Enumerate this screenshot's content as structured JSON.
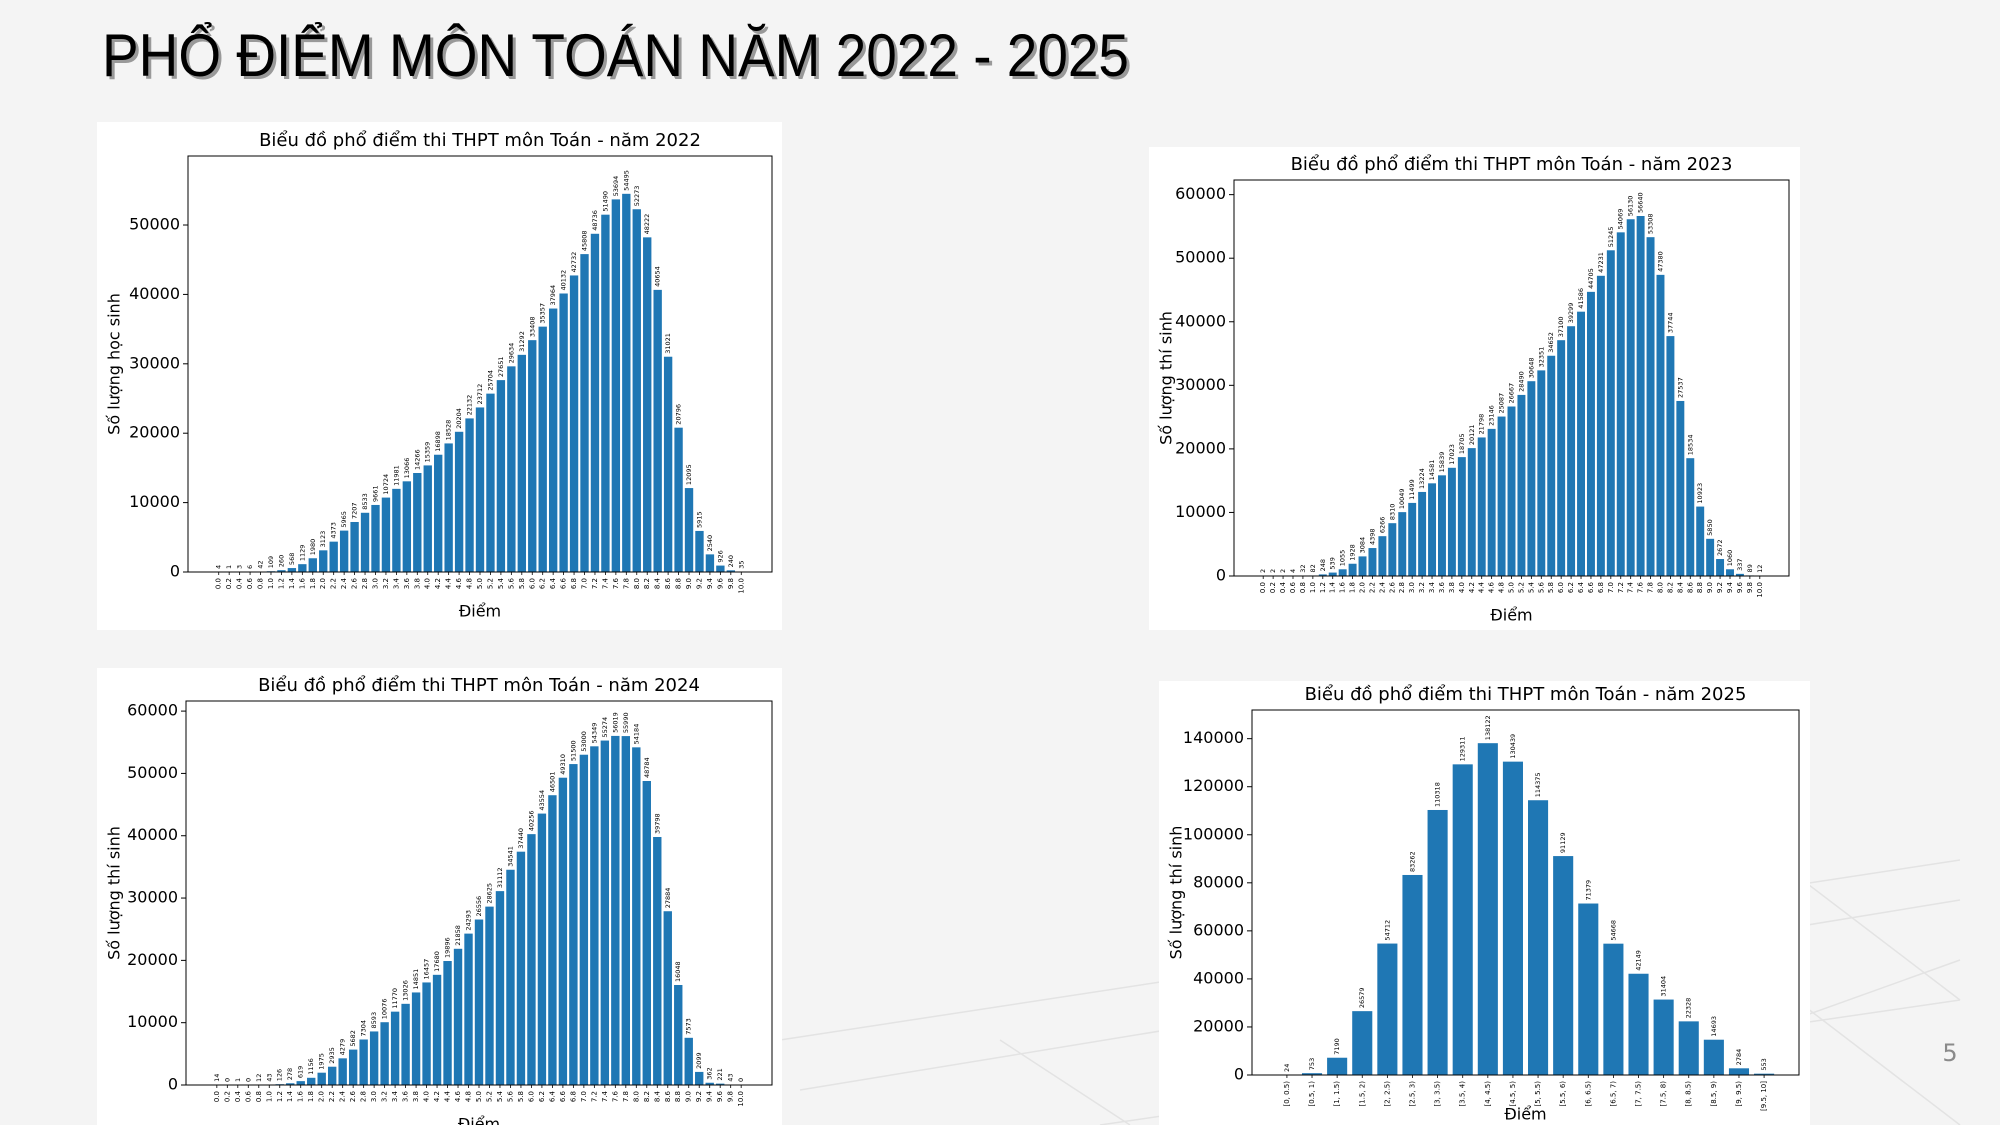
{
  "title": "PHỔ ĐIỂM MÔN TOÁN NĂM 2022 - 2025",
  "page_number": 5,
  "chart_data": [
    {
      "type": "bar",
      "title": "Biểu đồ phổ điểm thi THPT môn Toán - năm 2022",
      "xlabel": "Điểm",
      "ylabel": "Số lượng học sinh",
      "color": "#1f77b4",
      "categories": [
        "0.0",
        "0.2",
        "0.4",
        "0.6",
        "0.8",
        "1.0",
        "1.2",
        "1.4",
        "1.6",
        "1.8",
        "2.0",
        "2.2",
        "2.4",
        "2.6",
        "2.8",
        "3.0",
        "3.2",
        "3.4",
        "3.6",
        "3.8",
        "4.0",
        "4.2",
        "4.4",
        "4.6",
        "4.8",
        "5.0",
        "5.2",
        "5.4",
        "5.6",
        "5.8",
        "6.0",
        "6.2",
        "6.4",
        "6.6",
        "6.8",
        "7.0",
        "7.2",
        "7.4",
        "7.6",
        "7.8",
        "8.0",
        "8.2",
        "8.4",
        "8.6",
        "8.8",
        "9.0",
        "9.2",
        "9.4",
        "9.6",
        "9.8",
        "10.0"
      ],
      "values": [
        4,
        1,
        3,
        6,
        42,
        109,
        260,
        568,
        1129,
        1980,
        3123,
        4373,
        5965,
        7207,
        8533,
        9661,
        10724,
        11981,
        13066,
        14266,
        15359,
        16898,
        18528,
        20204,
        22132,
        23712,
        25704,
        27651,
        29634,
        31292,
        33408,
        35357,
        37964,
        40132,
        42732,
        45808,
        48736,
        51490,
        53694,
        54495,
        52273,
        48222,
        40654,
        31021,
        20796,
        12095,
        5915,
        2540,
        926,
        240,
        35
      ],
      "ylim": [
        0,
        59945
      ],
      "yticks": [
        0,
        10000,
        20000,
        30000,
        40000,
        50000
      ]
    },
    {
      "type": "bar",
      "title": "Biểu đồ phổ điểm thi THPT môn Toán - năm 2023",
      "xlabel": "Điểm",
      "ylabel": "Số lượng thí sinh",
      "color": "#1f77b4",
      "categories": [
        "0.0",
        "0.2",
        "0.4",
        "0.6",
        "0.8",
        "1.0",
        "1.2",
        "1.4",
        "1.6",
        "1.8",
        "2.0",
        "2.2",
        "2.4",
        "2.6",
        "2.8",
        "3.0",
        "3.2",
        "3.4",
        "3.6",
        "3.8",
        "4.0",
        "4.2",
        "4.4",
        "4.6",
        "4.8",
        "5.0",
        "5.2",
        "5.4",
        "5.6",
        "5.8",
        "6.0",
        "6.2",
        "6.4",
        "6.6",
        "6.8",
        "7.0",
        "7.2",
        "7.4",
        "7.6",
        "7.8",
        "8.0",
        "8.2",
        "8.4",
        "8.6",
        "8.8",
        "9.0",
        "9.2",
        "9.4",
        "9.6",
        "9.8",
        "10.0"
      ],
      "values": [
        2,
        2,
        2,
        4,
        32,
        82,
        248,
        539,
        1055,
        1928,
        3084,
        4398,
        6266,
        8310,
        10049,
        11499,
        13224,
        14581,
        15839,
        17023,
        18705,
        20121,
        21798,
        23146,
        25087,
        26667,
        28490,
        30648,
        32351,
        34652,
        37100,
        39299,
        41586,
        44705,
        47231,
        51245,
        54069,
        56130,
        56640,
        53308,
        47380,
        37744,
        27537,
        18534,
        10923,
        5850,
        2672,
        1060,
        337,
        89,
        12
      ],
      "ylim": [
        0,
        62304
      ],
      "yticks": [
        0,
        10000,
        20000,
        30000,
        40000,
        50000,
        60000
      ]
    },
    {
      "type": "bar",
      "title": "Biểu đồ phổ điểm thi THPT môn Toán - năm 2024",
      "xlabel": "Điểm",
      "ylabel": "Số lượng thí sinh",
      "color": "#1f77b4",
      "categories": [
        "0.0",
        "0.2",
        "0.4",
        "0.6",
        "0.8",
        "1.0",
        "1.2",
        "1.4",
        "1.6",
        "1.8",
        "2.0",
        "2.2",
        "2.4",
        "2.6",
        "2.8",
        "3.0",
        "3.2",
        "3.4",
        "3.6",
        "3.8",
        "4.0",
        "4.2",
        "4.4",
        "4.6",
        "4.8",
        "5.0",
        "5.2",
        "5.4",
        "5.6",
        "5.8",
        "6.0",
        "6.2",
        "6.4",
        "6.6",
        "6.8",
        "7.0",
        "7.2",
        "7.4",
        "7.6",
        "7.8",
        "8.0",
        "8.2",
        "8.4",
        "8.6",
        "8.8",
        "9.0",
        "9.2",
        "9.4",
        "9.6",
        "9.8",
        "10.0"
      ],
      "values": [
        14,
        0,
        1,
        0,
        12,
        43,
        126,
        278,
        619,
        1156,
        1975,
        2935,
        4279,
        5682,
        7304,
        8593,
        10076,
        11770,
        13026,
        14851,
        16457,
        17680,
        19896,
        21858,
        24293,
        26556,
        28625,
        31112,
        34541,
        37440,
        40256,
        43554,
        46501,
        49310,
        51500,
        53000,
        54349,
        55274,
        56019,
        55990,
        54184,
        48784,
        39798,
        27884,
        16048,
        7573,
        2099,
        362,
        221,
        43,
        0
      ],
      "ylim": [
        0,
        61621
      ],
      "yticks": [
        0,
        10000,
        20000,
        30000,
        40000,
        50000,
        60000
      ]
    },
    {
      "type": "bar",
      "title": "Biểu đồ phổ điểm thi THPT môn Toán - năm 2025",
      "xlabel": "Điểm",
      "ylabel": "Số lượng thí sinh",
      "color": "#1f77b4",
      "categories": [
        "[0, 0.5)",
        "[0.5, 1)",
        "[1, 1.5)",
        "[1.5, 2)",
        "[2, 2.5)",
        "[2.5, 3)",
        "[3, 3.5)",
        "[3.5, 4)",
        "[4, 4.5)",
        "[4.5, 5)",
        "[5, 5.5)",
        "[5.5, 6)",
        "[6, 6.5)",
        "[6.5, 7)",
        "[7, 7.5)",
        "[7.5, 8)",
        "[8, 8.5)",
        "[8.5, 9)",
        "[9, 9.5)",
        "[9.5, 10]"
      ],
      "values": [
        24,
        753,
        7190,
        26579,
        54712,
        83262,
        110318,
        129311,
        138122,
        130439,
        114375,
        91129,
        71379,
        54668,
        42149,
        31404,
        22328,
        14693,
        2784,
        553
      ],
      "ylim": [
        0,
        151934
      ],
      "yticks": [
        0,
        20000,
        40000,
        60000,
        80000,
        100000,
        120000,
        140000
      ]
    }
  ]
}
